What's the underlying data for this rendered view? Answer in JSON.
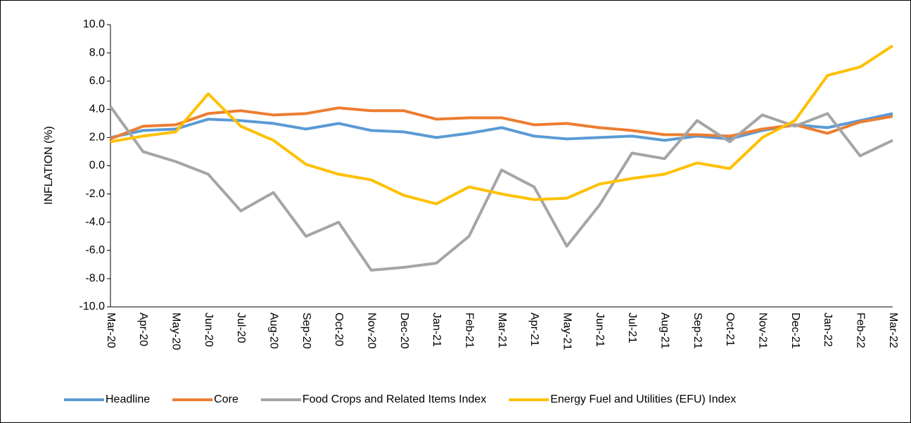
{
  "chart_data": {
    "type": "line",
    "y_label": "INFLATION (%)",
    "x": [
      "Mar-20",
      "Apr-20",
      "May-20",
      "Jun-20",
      "Jul-20",
      "Aug-20",
      "Sep-20",
      "Oct-20",
      "Nov-20",
      "Dec-20",
      "Jan-21",
      "Feb-21",
      "Mar-21",
      "Apr-21",
      "May-21",
      "Jun-21",
      "Jul-21",
      "Aug-21",
      "Sep-21",
      "Oct-21",
      "Nov-21",
      "Dec-21",
      "Jan-22",
      "Feb-22",
      "Mar-22"
    ],
    "series": [
      {
        "name": "Headline",
        "color": "#5b9bd5",
        "values": [
          2.0,
          2.5,
          2.6,
          3.3,
          3.2,
          3.0,
          2.6,
          3.0,
          2.5,
          2.4,
          2.0,
          2.3,
          2.7,
          2.1,
          1.9,
          2.0,
          2.1,
          1.8,
          2.1,
          1.9,
          2.5,
          2.9,
          2.7,
          3.2,
          3.7
        ]
      },
      {
        "name": "Core",
        "color": "#ed7d31",
        "values": [
          1.9,
          2.8,
          2.9,
          3.7,
          3.9,
          3.6,
          3.7,
          4.1,
          3.9,
          3.9,
          3.3,
          3.4,
          3.4,
          2.9,
          3.0,
          2.7,
          2.5,
          2.2,
          2.2,
          2.1,
          2.6,
          2.9,
          2.3,
          3.1,
          3.5
        ]
      },
      {
        "name": "Food Crops and Related Items Index",
        "color": "#a5a5a5",
        "values": [
          4.2,
          1.0,
          0.3,
          -0.6,
          -3.2,
          -1.9,
          -5.0,
          -4.0,
          -7.4,
          -7.2,
          -6.9,
          -5.0,
          -0.3,
          -1.5,
          -5.7,
          -2.8,
          0.9,
          0.5,
          3.2,
          1.7,
          3.6,
          2.8,
          3.7,
          0.7,
          1.8
        ]
      },
      {
        "name": "Energy Fuel and Utilities (EFU) Index",
        "color": "#ffc000",
        "values": [
          1.7,
          2.1,
          2.4,
          5.1,
          2.8,
          1.8,
          0.1,
          -0.6,
          -1.0,
          -2.1,
          -2.7,
          -1.5,
          -2.0,
          -2.4,
          -2.3,
          -1.3,
          -0.9,
          -0.6,
          0.2,
          -0.2,
          2.0,
          3.2,
          6.4,
          7.0,
          8.5
        ]
      }
    ],
    "ylim": [
      -10,
      10
    ],
    "yticks": [
      {
        "value": -10,
        "label": "-10.0"
      },
      {
        "value": -8,
        "label": "-8.0"
      },
      {
        "value": -6,
        "label": "-6.0"
      },
      {
        "value": -4,
        "label": "-4.0"
      },
      {
        "value": -2,
        "label": "-2.0"
      },
      {
        "value": 0,
        "label": "0.0"
      },
      {
        "value": 2,
        "label": "2.0"
      },
      {
        "value": 4,
        "label": "4.0"
      },
      {
        "value": 6,
        "label": "6.0"
      },
      {
        "value": 8,
        "label": "8.0"
      },
      {
        "value": 10,
        "label": "10.0"
      }
    ],
    "legend": "bottom"
  }
}
